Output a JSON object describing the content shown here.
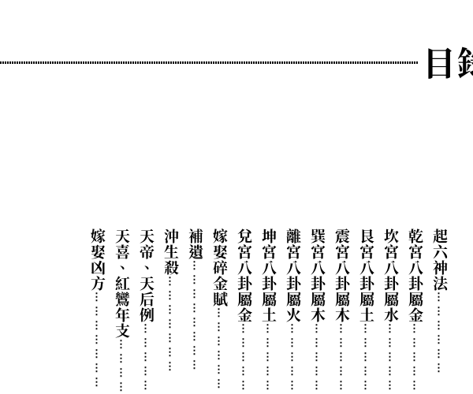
{
  "header": {
    "title": "目錄",
    "line_color": "#000000",
    "background_color": "#ffffff"
  },
  "toc": {
    "font_size": 19,
    "font_weight": "bold",
    "text_color": "#000000",
    "leader_char": "……",
    "entries": [
      {
        "label": "起六神法",
        "leader": "⋮⋮⋮⋮⋮⋮"
      },
      {
        "label": "乾宮八卦屬金",
        "leader": "⋮⋮⋮⋮⋮"
      },
      {
        "label": "坎宮八卦屬水",
        "leader": "⋮⋮⋮⋮⋮"
      },
      {
        "label": "艮宮八卦屬土",
        "leader": "⋮⋮⋮⋮⋮"
      },
      {
        "label": "震宮八卦屬木",
        "leader": "⋮⋮⋮⋮⋮"
      },
      {
        "label": "巽宮八卦屬木",
        "leader": "⋮⋮⋮⋮⋮"
      },
      {
        "label": "離宮八卦屬火",
        "leader": "⋮⋮⋮⋮⋮"
      },
      {
        "label": "坤宮八卦屬土",
        "leader": "⋮⋮⋮⋮⋮"
      },
      {
        "label": "兌宮八卦屬金",
        "leader": "⋮⋮⋮⋮⋮"
      },
      {
        "label": "嫁娶碎金賦",
        "leader": "⋮⋮⋮⋮⋮⋮"
      },
      {
        "label": "補遺",
        "leader": "⋮⋮⋮⋮⋮⋮⋮⋮"
      },
      {
        "label": "沖生殺",
        "leader": "⋮⋮⋮⋮⋮⋮⋮"
      },
      {
        "label": "天帝、天后例",
        "leader": "⋮⋮⋮⋮⋮⋮"
      },
      {
        "label": "天喜、紅鸞年支",
        "leader": "⋮⋮⋮⋮⋮"
      },
      {
        "label": "嫁娶凶方",
        "leader": "⋮⋮⋮⋮⋮⋮⋮"
      }
    ]
  }
}
